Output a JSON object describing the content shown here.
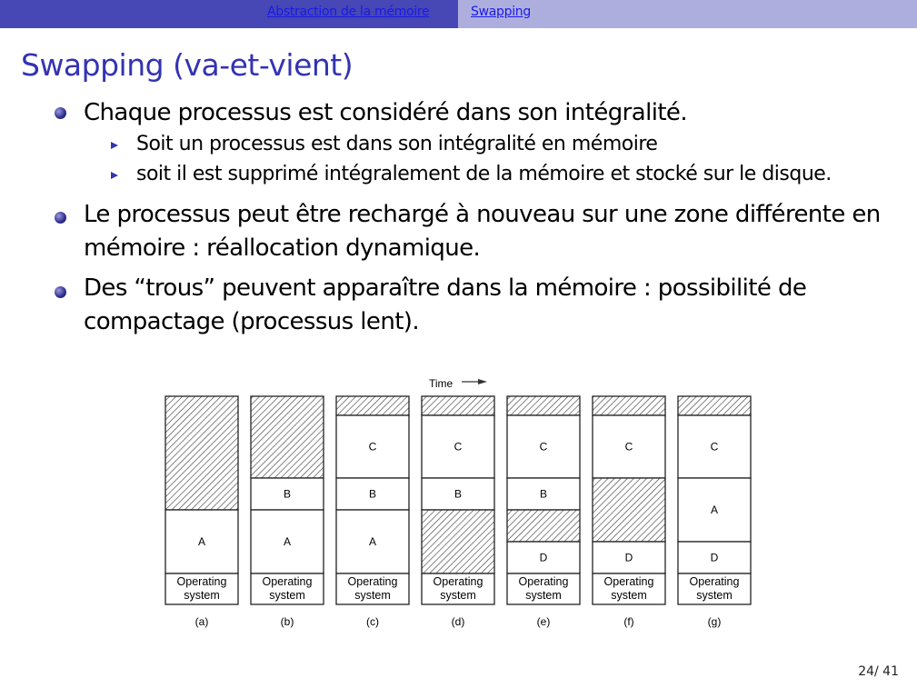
{
  "header": {
    "section": "Abstraction de la mémoire",
    "subsection": "Swapping",
    "colors": {
      "left": "#4747b5",
      "right": "#aeaede"
    }
  },
  "title": "Swapping (va-et-vient)",
  "bullets": [
    {
      "text": "Chaque processus est considéré dans son intégralité.",
      "sub": [
        "Soit un processus est dans son intégralité en mémoire",
        "soit il est supprimé intégralement de la mémoire et stocké sur le disque."
      ]
    },
    {
      "lines": [
        "Le processus peut être rechargé à nouveau sur une zone différente en",
        "mémoire : réallocation dynamique."
      ]
    },
    {
      "lines": [
        "Des “trous” peuvent apparaître dans la mémoire : possibilité de",
        "compactage (processus lent)."
      ]
    }
  ],
  "figure": {
    "time_label": "Time",
    "os_label": [
      "Operating",
      "system"
    ],
    "columns": [
      {
        "label": "(a)",
        "segments": [
          "hole",
          "A"
        ]
      },
      {
        "label": "(b)",
        "segments": [
          "hole",
          "B",
          "A"
        ]
      },
      {
        "label": "(c)",
        "segments": [
          "hole",
          "C",
          "B",
          "A"
        ]
      },
      {
        "label": "(d)",
        "segments": [
          "hole",
          "C",
          "B",
          "hole"
        ]
      },
      {
        "label": "(e)",
        "segments": [
          "hole",
          "C",
          "B",
          "hole",
          "D"
        ]
      },
      {
        "label": "(f)",
        "segments": [
          "hole",
          "C",
          "hole",
          "D"
        ]
      },
      {
        "label": "(g)",
        "segments": [
          "hole",
          "C",
          "A",
          "D"
        ]
      }
    ]
  },
  "page": "24/ 41"
}
